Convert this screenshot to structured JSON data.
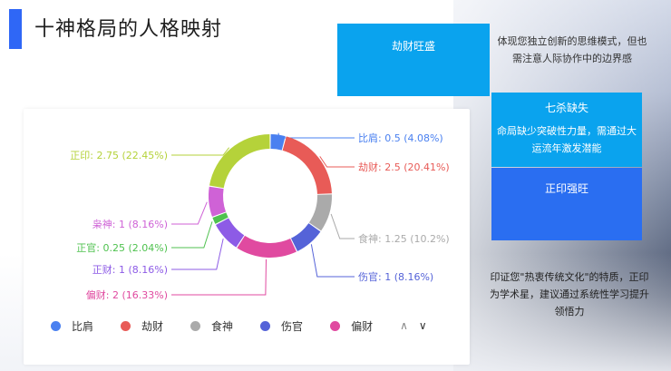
{
  "header": {
    "title": "十神格局的人格映射"
  },
  "chart_data": {
    "type": "pie",
    "variant": "donut",
    "labels": [
      "比肩",
      "劫财",
      "食神",
      "伤官",
      "偏财",
      "正财",
      "正官",
      "枭神",
      "正印"
    ],
    "values": [
      0.5,
      2.5,
      1.25,
      1,
      2,
      1,
      0.25,
      1,
      2.75
    ],
    "label_texts": [
      "比肩: 0.5 (4.08%)",
      "劫财: 2.5 (20.41%)",
      "食神: 1.25 (10.2%)",
      "伤官: 1 (8.16%)",
      "偏财: 2 (16.33%)",
      "正财: 1 (8.16%)",
      "正官: 0.25 (2.04%)",
      "枭神: 1 (8.16%)",
      "正印: 2.75 (22.45%)"
    ],
    "colors": [
      "#4a80f0",
      "#e85b57",
      "#aaaaaa",
      "#5563d8",
      "#e04aa0",
      "#8d5be6",
      "#4fc24f",
      "#cf62d6",
      "#b5d23a"
    ],
    "legend": {
      "placement": "bottom",
      "visible_items": [
        "比肩",
        "劫财",
        "食神",
        "伤官",
        "偏财"
      ],
      "paged": true
    }
  },
  "panels": {
    "jiecai": {
      "title": "劫财旺盛",
      "description": "体现您独立创新的思维模式，但也需注意人际协作中的边界感"
    },
    "qisha": {
      "title": "七杀缺失",
      "description": "命局缺少突破性力量，需通过大运流年激发潜能"
    },
    "zhengyin": {
      "title": "正印强旺",
      "description": "印证您\"热衷传统文化\"的特质，正印为学术星，建议通过系统性学习提升领悟力"
    }
  },
  "legend_nav": {
    "prev": "∧",
    "next": "∨"
  }
}
